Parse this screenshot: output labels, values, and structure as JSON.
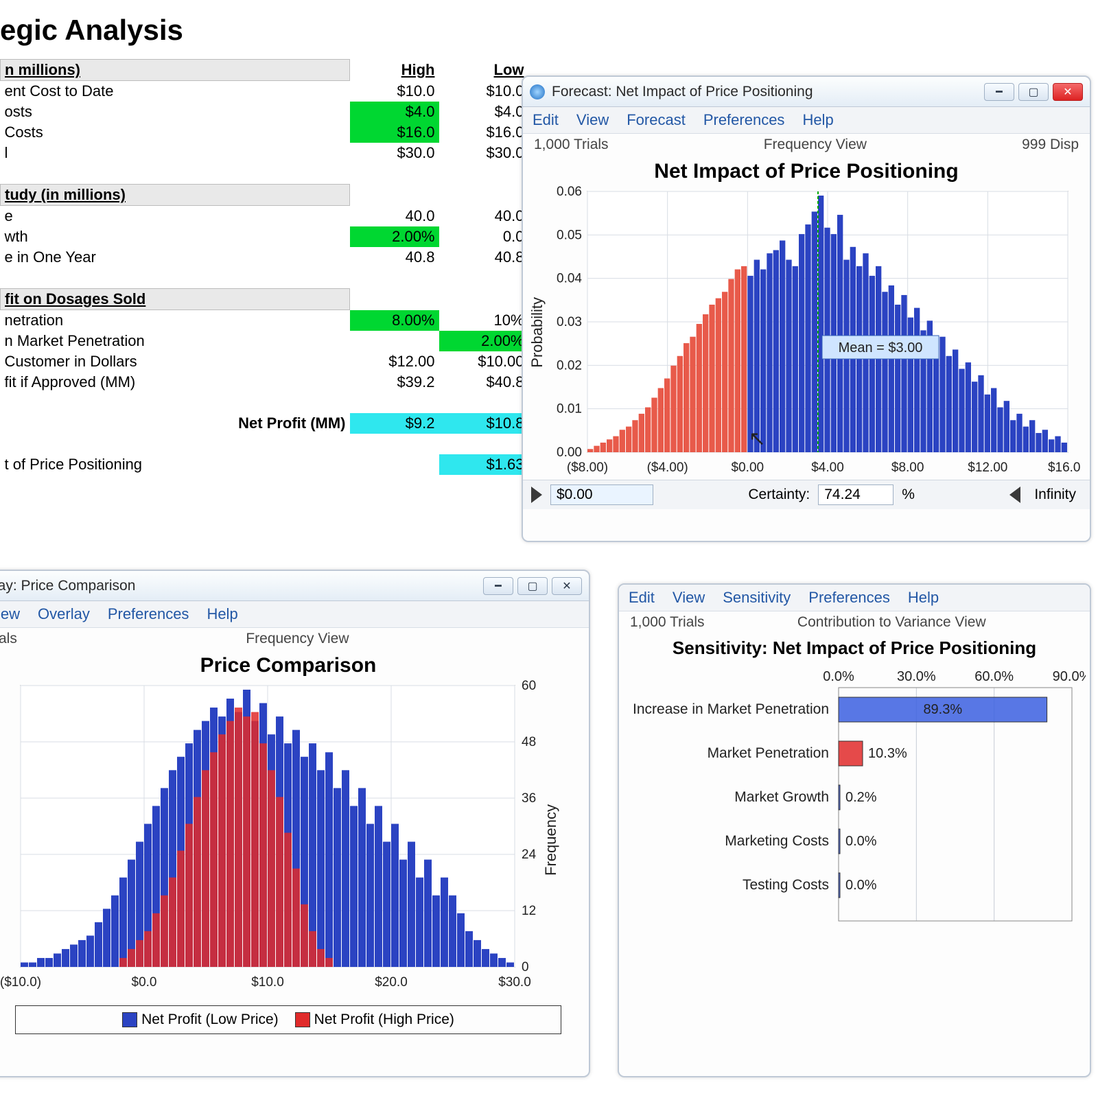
{
  "sheet": {
    "title": "egic Analysis",
    "sections": [
      {
        "header": "n millions)",
        "col_high": "High",
        "col_low": "Low",
        "rows": [
          {
            "label": "ent Cost to Date",
            "h": "$10.0",
            "l": "$10.0"
          },
          {
            "label": "osts",
            "h": "$4.0",
            "l": "$4.0",
            "hlH": true
          },
          {
            "label": "Costs",
            "h": "$16.0",
            "l": "$16.0",
            "hlH": true
          },
          {
            "label": "l",
            "h": "$30.0",
            "l": "$30.0"
          }
        ]
      },
      {
        "header": "tudy (in millions)",
        "rows": [
          {
            "label": "e",
            "h": "40.0",
            "l": "40.0"
          },
          {
            "label": "wth",
            "h": "2.00%",
            "l": "0.0",
            "hlH": true
          },
          {
            "label": "e in One Year",
            "h": "40.8",
            "l": "40.8"
          }
        ]
      },
      {
        "header": "fit on Dosages Sold",
        "rows": [
          {
            "label": "netration",
            "h": "8.00%",
            "l": "10%",
            "hlH": true
          },
          {
            "label": "n Market Penetration",
            "h": "",
            "l": "2.00%",
            "hlL": true
          },
          {
            "label": "Customer in Dollars",
            "h": "$12.00",
            "l": "$10.00"
          },
          {
            "label": "fit if Approved (MM)",
            "h": "$39.2",
            "l": "$40.8"
          }
        ]
      }
    ],
    "net_row": {
      "label": "Net Profit (MM)",
      "h": "$9.2",
      "l": "$10.8"
    },
    "impact_row": {
      "label": "t of Price Positioning",
      "v": "$1.63"
    }
  },
  "forecast": {
    "title": "Forecast: Net Impact of Price Positioning",
    "menu": [
      "Edit",
      "View",
      "Forecast",
      "Preferences",
      "Help"
    ],
    "trials": "1,000 Trials",
    "view": "Frequency View",
    "right": "999 Disp",
    "chart_title": "Net Impact of Price Positioning",
    "ylabel": "Probability",
    "yticks": [
      "0.06",
      "0.05",
      "0.04",
      "0.03",
      "0.02",
      "0.01",
      "0.00"
    ],
    "xticks": [
      "($8.00)",
      "($4.00)",
      "$0.00",
      "$4.00",
      "$8.00",
      "$12.00",
      "$16.00"
    ],
    "mean_label": "Mean = $3.00",
    "series_red": "#e85a4a",
    "series_blue": "#2b43c2",
    "grid": "#d8dde4",
    "bg": "#ffffff",
    "red_vals": [
      1,
      2,
      3,
      4,
      5,
      7,
      8,
      10,
      12,
      14,
      17,
      20,
      23,
      27,
      30,
      34,
      36,
      40,
      43,
      46,
      48,
      50,
      54,
      57,
      58
    ],
    "blue_vals": [
      55,
      60,
      57,
      62,
      63,
      66,
      60,
      58,
      68,
      71,
      75,
      80,
      70,
      68,
      74,
      60,
      64,
      58,
      62,
      55,
      58,
      50,
      52,
      46,
      49,
      42,
      45,
      38,
      41,
      34,
      36,
      30,
      32,
      26,
      28,
      22,
      24,
      18,
      20,
      14,
      16,
      10,
      12,
      8,
      10,
      6,
      7,
      4,
      5,
      3
    ],
    "certainty_label": "Certainty:",
    "certainty_val": "74.24",
    "pct": "%",
    "left_input": "$0.00",
    "right_label": "Infinity"
  },
  "overlay": {
    "title": "lay: Price Comparison",
    "menu": [
      "lew",
      "Overlay",
      "Preferences",
      "Help"
    ],
    "trials": "als",
    "view": "Frequency View",
    "chart_title": "Price Comparison",
    "ylabel_right": "Frequency",
    "xticks": [
      "($10.0)",
      "$0.0",
      "$10.0",
      "$20.0",
      "$30.0"
    ],
    "yticks": [
      "60",
      "48",
      "36",
      "24",
      "12",
      "0"
    ],
    "blue": "#2b43c2",
    "red": "#e02a2a",
    "blue_vals": [
      1,
      1,
      2,
      2,
      3,
      4,
      5,
      6,
      7,
      10,
      13,
      16,
      20,
      24,
      28,
      32,
      36,
      40,
      44,
      47,
      50,
      53,
      55,
      58,
      56,
      60,
      57,
      62,
      55,
      59,
      52,
      56,
      50,
      53,
      47,
      50,
      44,
      48,
      40,
      44,
      36,
      40,
      32,
      36,
      28,
      32,
      24,
      28,
      20,
      24,
      16,
      20,
      16,
      12,
      8,
      6,
      4,
      3,
      2,
      1
    ],
    "red_vals": [
      2,
      4,
      6,
      8,
      12,
      16,
      20,
      26,
      32,
      38,
      44,
      48,
      52,
      55,
      58,
      56,
      57,
      50,
      44,
      38,
      30,
      22,
      14,
      8,
      4,
      2
    ],
    "red_offset": 12,
    "legend": [
      {
        "c": "#2b43c2",
        "t": "Net Profit (Low Price)"
      },
      {
        "c": "#e02a2a",
        "t": "Net Profit (High Price)"
      }
    ]
  },
  "sensitivity": {
    "menu": [
      "Edit",
      "View",
      "Sensitivity",
      "Preferences",
      "Help"
    ],
    "trials": "1,000 Trials",
    "view": "Contribution to Variance View",
    "chart_title": "Sensitivity: Net Impact of Price Positioning",
    "xticks": [
      "0.0%",
      "30.0%",
      "60.0%",
      "90.0%"
    ],
    "bar_color": "#3b5fe0",
    "bar_red": "#e02a2a",
    "rows": [
      {
        "label": "Increase in Market Penetration",
        "val": 89.3,
        "text": "89.3%",
        "color": "#3b5fe0"
      },
      {
        "label": "Market Penetration",
        "val": 10.3,
        "text": "10.3%",
        "color": "#e02a2a"
      },
      {
        "label": "Market Growth",
        "val": 0.2,
        "text": "0.2%",
        "color": "#3b5fe0"
      },
      {
        "label": "Marketing Costs",
        "val": 0.0,
        "text": "0.0%",
        "color": "#3b5fe0"
      },
      {
        "label": "Testing Costs",
        "val": 0.0,
        "text": "0.0%",
        "color": "#3b5fe0"
      }
    ]
  }
}
